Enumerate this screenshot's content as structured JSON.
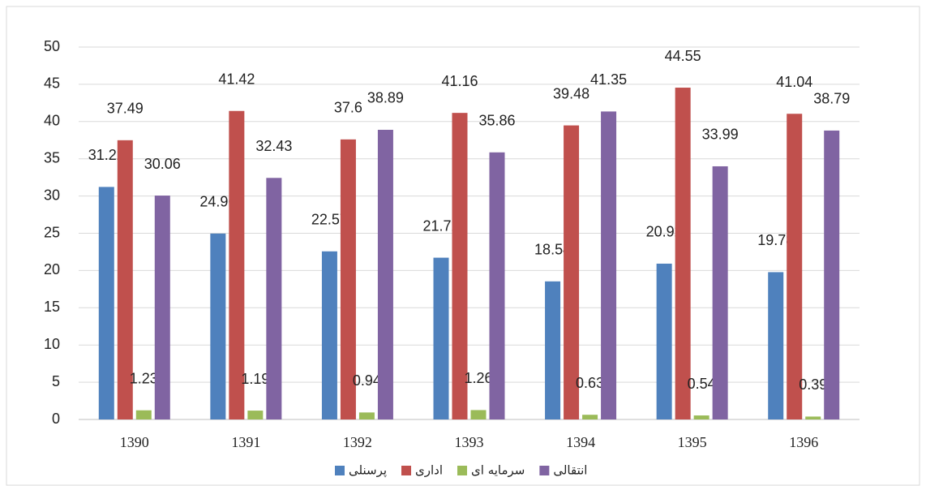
{
  "chart_data": {
    "type": "bar",
    "categories": [
      "1390",
      "1391",
      "1392",
      "1393",
      "1394",
      "1395",
      "1396"
    ],
    "series": [
      {
        "name": "پرسنلی",
        "color": "#4f81bd",
        "values": [
          31.22,
          24.96,
          22.57,
          21.72,
          18.54,
          20.92,
          19.78
        ]
      },
      {
        "name": "اداری",
        "color": "#c0504d",
        "values": [
          37.49,
          41.42,
          37.6,
          41.16,
          39.48,
          44.55,
          41.04
        ]
      },
      {
        "name": "سرمایه ای",
        "color": "#9bbb59",
        "values": [
          1.23,
          1.19,
          0.94,
          1.26,
          0.63,
          0.54,
          0.39
        ]
      },
      {
        "name": "انتقالی",
        "color": "#8064a2",
        "values": [
          30.06,
          32.43,
          38.89,
          35.86,
          41.35,
          33.99,
          38.79
        ]
      }
    ],
    "ylim": [
      0,
      50
    ],
    "yticks": [
      0,
      5,
      10,
      15,
      20,
      25,
      30,
      35,
      40,
      45,
      50
    ],
    "grid": true,
    "legend": "bottom"
  }
}
